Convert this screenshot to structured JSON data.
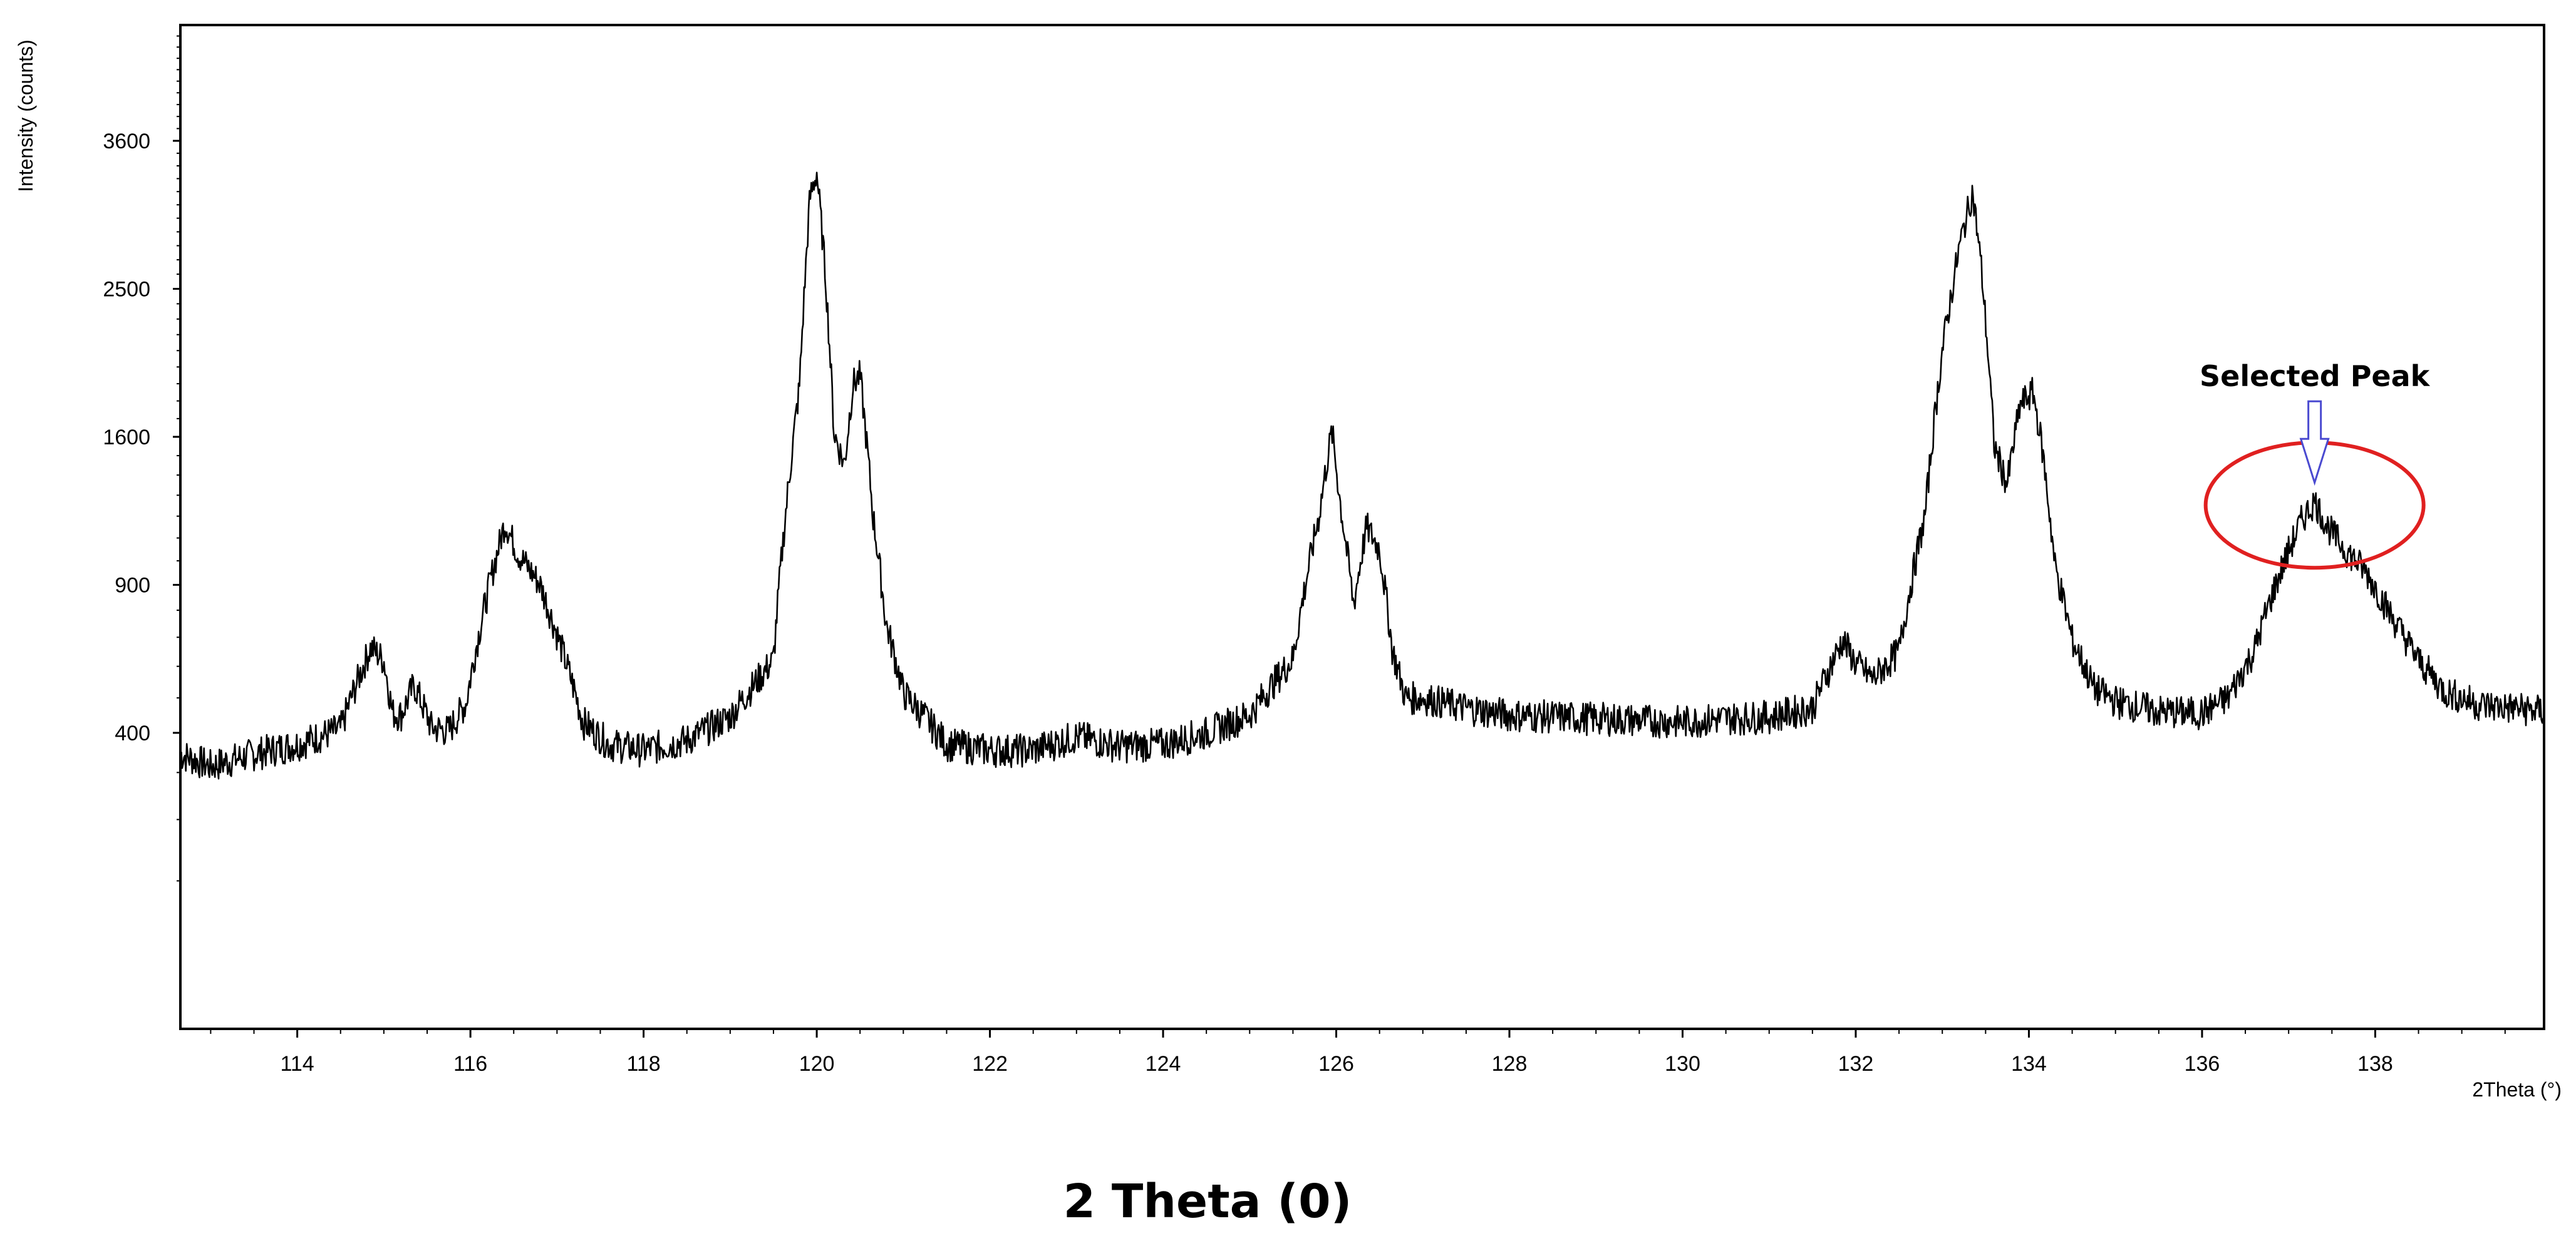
{
  "chart_data": {
    "type": "line",
    "title": "",
    "xlabel": "2Theta (°)",
    "ylabel": "Intensity (counts)",
    "caption": "2 Theta (0)",
    "xlim": [
      112.65,
      139.95
    ],
    "ylim": [
      0,
      4600
    ],
    "x_ticks": [
      114,
      116,
      118,
      120,
      122,
      124,
      126,
      128,
      130,
      132,
      134,
      136,
      138
    ],
    "y_ticks": [
      400,
      900,
      1600,
      2500,
      3600
    ],
    "y_scale": "sqrt",
    "grid": false,
    "line_color": "#000000",
    "series": [
      {
        "x": [
          112.65,
          113.0,
          113.5,
          114.0,
          114.5,
          114.85,
          115.0,
          115.1,
          115.2,
          115.35,
          115.55,
          115.75,
          115.95,
          116.2,
          116.4,
          116.55,
          116.8,
          117.0,
          117.3,
          117.6,
          118.0,
          118.5,
          119.0,
          119.5,
          119.8,
          119.92,
          120.0,
          120.1,
          120.2,
          120.32,
          120.42,
          120.5,
          120.65,
          120.8,
          121.0,
          121.5,
          122.0,
          122.5,
          123.0,
          123.5,
          124.0,
          124.5,
          125.0,
          125.5,
          125.8,
          125.95,
          126.05,
          126.2,
          126.35,
          126.5,
          126.65,
          126.8,
          127.0,
          127.5,
          128.0,
          128.5,
          129.0,
          129.5,
          130.0,
          130.5,
          131.0,
          131.5,
          131.85,
          132.0,
          132.2,
          132.5,
          132.8,
          133.0,
          133.2,
          133.35,
          133.45,
          133.6,
          133.75,
          133.9,
          134.05,
          134.15,
          134.3,
          134.5,
          134.75,
          135.0,
          135.5,
          136.0,
          136.3,
          136.6,
          136.9,
          137.15,
          137.3,
          137.45,
          137.65,
          137.9,
          138.2,
          138.5,
          138.8,
          139.2,
          139.6,
          139.95
        ],
        "y": [
          345,
          315,
          345,
          370,
          410,
          665,
          620,
          455,
          450,
          540,
          415,
          405,
          485,
          870,
          1170,
          1030,
          905,
          710,
          430,
          370,
          355,
          380,
          445,
          620,
          1880,
          3150,
          3350,
          2600,
          1620,
          1450,
          1900,
          1950,
          1200,
          750,
          515,
          370,
          355,
          355,
          390,
          365,
          370,
          400,
          450,
          625,
          1200,
          1630,
          1250,
          820,
          1150,
          1050,
          650,
          500,
          500,
          470,
          450,
          445,
          440,
          435,
          430,
          440,
          445,
          470,
          690,
          610,
          560,
          650,
          1200,
          2100,
          2800,
          3200,
          2650,
          1550,
          1350,
          1780,
          1850,
          1550,
          980,
          690,
          530,
          490,
          460,
          455,
          500,
          650,
          950,
          1180,
          1270,
          1150,
          1050,
          950,
          770,
          620,
          520,
          480,
          470,
          460
        ]
      }
    ],
    "annotations": [
      {
        "text": "Selected Peak",
        "x": 137.3,
        "y": 1270,
        "color": "#e02020",
        "arrow_color": "#4a4ad0"
      }
    ]
  }
}
